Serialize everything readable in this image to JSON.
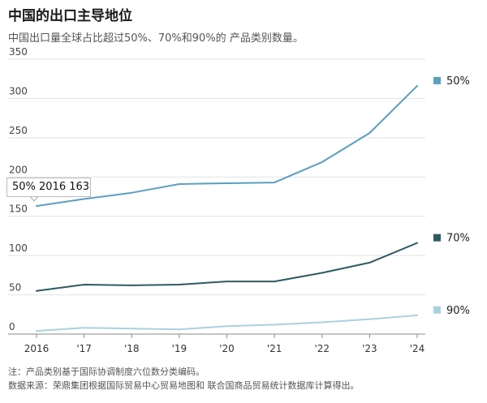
{
  "header": {
    "title": "中国的出口主导地位",
    "subtitle": "中国出口量全球占比超过50%、70%和90%的 产品类别数量。"
  },
  "tooltip": {
    "text": "50% 2016 163"
  },
  "footnotes": {
    "note": "注：产品类别基于国际协调制度六位数分类编码。",
    "source": "数据来源：荣鼎集团根据国际贸易中心贸易地图和 联合国商品贸易统计数据库计算得出。"
  },
  "chart_data": {
    "type": "line",
    "x": [
      "2016",
      "'17",
      "'18",
      "'19",
      "'20",
      "'21",
      "'22",
      "'23",
      "'24"
    ],
    "ylim": [
      0,
      350
    ],
    "yticks": [
      0,
      50,
      100,
      150,
      200,
      250,
      300,
      350
    ],
    "grid": true,
    "legend": "right",
    "series": [
      {
        "name": "50%",
        "color": "#5b9fbf",
        "values": [
          163,
          172,
          180,
          191,
          192,
          193,
          219,
          256,
          316
        ]
      },
      {
        "name": "70%",
        "color": "#2f5964",
        "values": [
          55,
          63,
          62,
          63,
          67,
          67,
          78,
          91,
          116
        ]
      },
      {
        "name": "90%",
        "color": "#a9d1e0",
        "values": [
          4,
          8,
          7,
          6,
          10,
          12,
          15,
          19,
          24
        ]
      }
    ]
  }
}
